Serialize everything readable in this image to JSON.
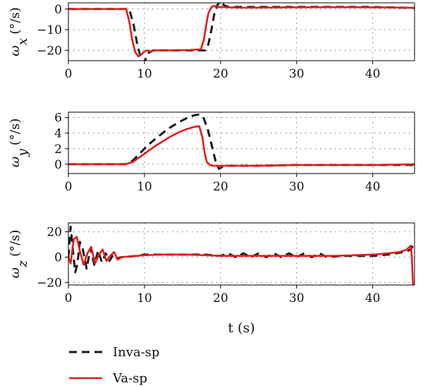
{
  "chart_data": [
    {
      "type": "line",
      "ylabel_symbol": "ω",
      "ylabel_sub": "x",
      "ylabel_unit": "(°/s)",
      "xlabel": "",
      "xlim": [
        0,
        45.5
      ],
      "ylim": [
        -25,
        3
      ],
      "xticks": [
        0,
        10,
        20,
        30,
        40
      ],
      "yticks": [
        0,
        -10,
        -20
      ],
      "grid": true,
      "series": [
        {
          "name": "Inva-sp",
          "color": "#1a1a1a",
          "dash": true,
          "x": [
            0,
            8.0,
            8.6,
            9.0,
            9.4,
            9.8,
            10.2,
            10.6,
            11.2,
            12,
            14,
            16,
            17.5,
            18.0,
            18.4,
            18.8,
            19.2,
            19.6,
            20.0,
            20.4,
            21,
            23,
            26,
            30,
            35,
            40,
            45.5
          ],
          "y": [
            0,
            0,
            -8,
            -16,
            -22,
            -26,
            -24,
            -21,
            -20,
            -20,
            -20,
            -20,
            -20,
            -20,
            -17,
            -10,
            -2,
            2,
            4,
            2,
            1,
            1,
            1,
            1,
            1,
            1,
            0.5
          ]
        },
        {
          "name": "Va-sp",
          "color": "#e31b1b",
          "dash": false,
          "x": [
            0,
            7.6,
            8.0,
            8.4,
            8.8,
            9.2,
            9.6,
            10.0,
            10.4,
            10.8,
            11.5,
            12.5,
            14,
            16,
            17.4,
            17.8,
            18.1,
            18.4,
            18.8,
            19.2,
            19.6,
            20.2,
            21,
            23,
            26,
            30,
            35,
            40,
            45.5
          ],
          "y": [
            0,
            0,
            -6,
            -15,
            -21,
            -23,
            -22,
            -20.5,
            -20,
            -20.5,
            -20,
            -20,
            -20,
            -19.8,
            -19.5,
            -15,
            -8,
            -2,
            1,
            1.5,
            1,
            1,
            0.8,
            0.6,
            0.7,
            0.8,
            0.9,
            0.8,
            0.6
          ]
        }
      ]
    },
    {
      "type": "line",
      "ylabel_symbol": "ω",
      "ylabel_sub": "y",
      "ylabel_unit": "(°/s)",
      "xlabel": "",
      "xlim": [
        0,
        45.5
      ],
      "ylim": [
        -1.2,
        6.7
      ],
      "xticks": [
        0,
        10,
        20,
        30,
        40
      ],
      "yticks": [
        0,
        2,
        4,
        6
      ],
      "grid": true,
      "series": [
        {
          "name": "Inva-sp",
          "color": "#1a1a1a",
          "dash": true,
          "x": [
            0,
            7.5,
            8.5,
            9.5,
            10.5,
            11.5,
            12.5,
            13.5,
            14.5,
            15.5,
            16.5,
            17.2,
            17.8,
            18.4,
            19.0,
            19.4,
            19.8,
            20.3,
            21,
            25,
            30,
            35,
            40,
            45.5
          ],
          "y": [
            0,
            0,
            0.5,
            1.5,
            2.5,
            3.3,
            4.1,
            4.8,
            5.4,
            5.9,
            6.3,
            6.4,
            5.9,
            4.2,
            1.8,
            0.2,
            -0.6,
            -0.3,
            -0.2,
            -0.2,
            -0.1,
            -0.1,
            -0.1,
            -0.1
          ]
        },
        {
          "name": "Va-sp",
          "color": "#e31b1b",
          "dash": false,
          "x": [
            0,
            7.5,
            8.5,
            9.5,
            10.5,
            11.5,
            12.5,
            13.5,
            14.5,
            15.5,
            16.5,
            17.2,
            17.6,
            17.9,
            18.2,
            18.6,
            19.0,
            20,
            25,
            30,
            35,
            40,
            45.5
          ],
          "y": [
            0,
            0,
            0.3,
            1.0,
            1.7,
            2.4,
            3.0,
            3.6,
            4.1,
            4.5,
            4.8,
            4.9,
            3.5,
            1.5,
            0.3,
            -0.1,
            -0.2,
            -0.2,
            -0.2,
            -0.1,
            -0.1,
            -0.1,
            0
          ]
        }
      ]
    },
    {
      "type": "line",
      "ylabel_symbol": "ω",
      "ylabel_sub": "z",
      "ylabel_unit": "(°/s)",
      "xlabel": "t (s)",
      "xlim": [
        0,
        45.5
      ],
      "ylim": [
        -22,
        27
      ],
      "xticks": [
        0,
        10,
        20,
        30,
        40
      ],
      "yticks": [
        20,
        0,
        -20
      ],
      "grid": true,
      "series": [
        {
          "name": "Inva-sp",
          "color": "#1a1a1a",
          "dash": true,
          "x": [
            0,
            0.3,
            0.6,
            0.9,
            1.2,
            1.5,
            1.9,
            2.4,
            2.9,
            3.4,
            3.9,
            4.4,
            4.9,
            5.4,
            5.9,
            6.4,
            7,
            8,
            9,
            10,
            12,
            14,
            16,
            18,
            20,
            21,
            22,
            23,
            24,
            25,
            26,
            27,
            28,
            29,
            30,
            31,
            32,
            33,
            34,
            36,
            38,
            40,
            42,
            43,
            44,
            44.6,
            45.0,
            45.3,
            45.5
          ],
          "y": [
            0,
            24,
            5,
            -12,
            -5,
            12,
            6,
            -9,
            7,
            -6,
            5,
            -4,
            3,
            -3,
            2,
            -1,
            0,
            0.5,
            1,
            2,
            2,
            2,
            2,
            2,
            1,
            3,
            0,
            3,
            0,
            3,
            0,
            3,
            0,
            3,
            0,
            3,
            0,
            3,
            0,
            1,
            1,
            1,
            2,
            3,
            4,
            5,
            6,
            9,
            12
          ]
        },
        {
          "name": "Va-sp",
          "color": "#e31b1b",
          "dash": false,
          "x": [
            0,
            0.3,
            0.7,
            1.1,
            1.5,
            2.0,
            2.5,
            3.0,
            3.5,
            4.0,
            4.5,
            5.0,
            5.5,
            6.0,
            6.5,
            7,
            8,
            9,
            10,
            12,
            14,
            16,
            18,
            20,
            25,
            30,
            35,
            40,
            42,
            43.5,
            44.5,
            45.0,
            45.15,
            45.3
          ],
          "y": [
            0,
            -5,
            14,
            16,
            5,
            -6,
            3,
            8,
            -5,
            2,
            6,
            -3,
            1,
            4,
            -2,
            0,
            0.5,
            1,
            1.5,
            2,
            2,
            2,
            1.5,
            1,
            1,
            1,
            1,
            2,
            3,
            4,
            6,
            9,
            0,
            -22
          ]
        }
      ]
    }
  ],
  "legend": {
    "placement": "bottom-left",
    "entries": [
      {
        "label": "Inva-sp",
        "color": "#1a1a1a",
        "dash": true
      },
      {
        "label": "Va-sp",
        "color": "#e31b1b",
        "dash": false
      }
    ]
  }
}
